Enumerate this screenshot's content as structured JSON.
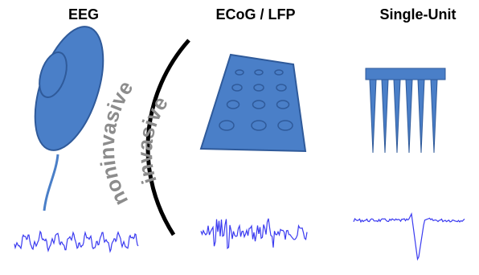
{
  "titles": {
    "eeg": "EEG",
    "ecog": "ECoG / LFP",
    "single_unit": "Single-Unit"
  },
  "labels": {
    "noninvasive": "noninvasive",
    "invasive": "invasive"
  },
  "colors": {
    "shape_fill": "#4a7fc8",
    "shape_stroke": "#2f5a9a",
    "signal": "#3a3af0",
    "divider": "#000000",
    "curved_text": "#8c8c8c"
  }
}
